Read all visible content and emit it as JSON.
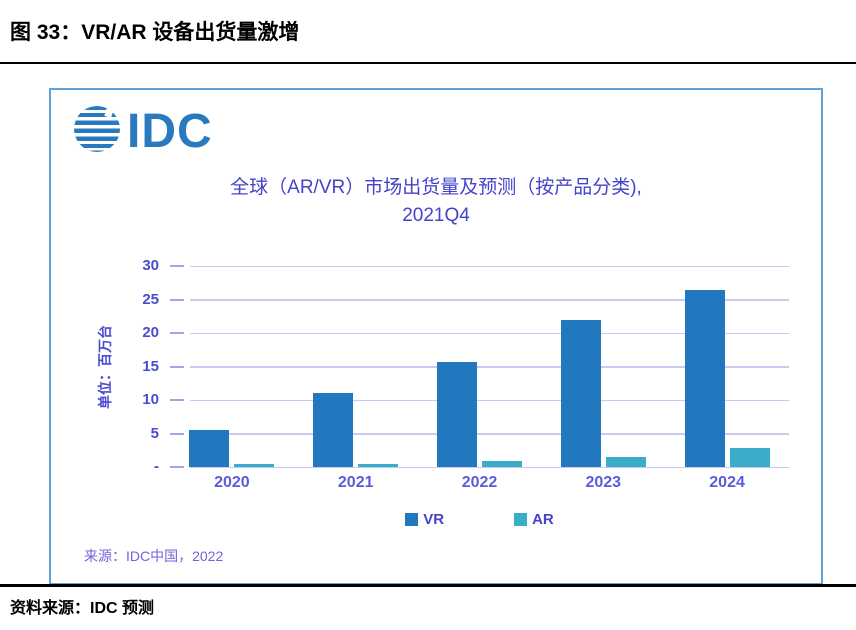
{
  "page": {
    "title": "图 33：VR/AR 设备出货量激增",
    "footer_source": "资料来源：IDC 预测"
  },
  "panel": {
    "logo_text": "IDC",
    "source_note": "来源：IDC中国，2022"
  },
  "chart_data": {
    "type": "bar",
    "title_line1": "全球（AR/VR）市场出货量及预测（按产品分类),",
    "title_line2": "2021Q4",
    "categories": [
      "2020",
      "2021",
      "2022",
      "2023",
      "2024"
    ],
    "series": [
      {
        "name": "VR",
        "color": "#2278BE",
        "values": [
          5.5,
          11.0,
          15.7,
          21.9,
          26.4
        ]
      },
      {
        "name": "AR",
        "color": "#3AAEC8",
        "values": [
          0.4,
          0.5,
          0.9,
          1.5,
          2.9
        ]
      }
    ],
    "ylabel": "单位：百万台",
    "y_ticks": [
      30,
      25,
      20,
      15,
      10,
      5
    ],
    "zero_tick_label": "-",
    "ylim": [
      0,
      30
    ],
    "grid": true,
    "legend_position": "bottom"
  },
  "colors": {
    "vr_bar": "#2278BE",
    "ar_bar": "#3AAEC8",
    "gridline": "#C9CAF2",
    "axis_text": "#4B4BD2",
    "chart_title": "#4343CC",
    "panel_border": "#5FA0D6",
    "logo_blue": "#2979BE",
    "source_note": "#7163DB"
  }
}
